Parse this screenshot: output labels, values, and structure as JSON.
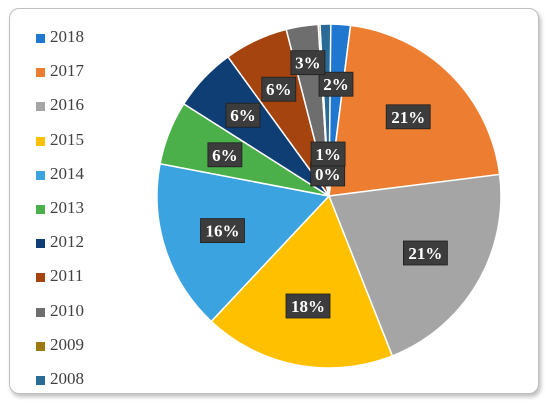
{
  "chart_data": {
    "type": "pie",
    "title": "",
    "legend_position": "left",
    "categories": [
      "2018",
      "2017",
      "2016",
      "2015",
      "2014",
      "2013",
      "2012",
      "2011",
      "2010",
      "2009",
      "2008"
    ],
    "values": [
      2,
      21,
      21,
      18,
      16,
      6,
      6,
      6,
      3,
      0,
      1
    ],
    "data_labels": [
      "2%",
      "21%",
      "21%",
      "18%",
      "16%",
      "6%",
      "6%",
      "6%",
      "3%",
      "0%",
      "1%"
    ],
    "colors": [
      "#1f77d0",
      "#ed7d31",
      "#a5a5a5",
      "#ffc000",
      "#3ba3e0",
      "#4cb04a",
      "#0e3e73",
      "#a5440f",
      "#6e6e6e",
      "#9c7a10",
      "#2a6a96"
    ]
  }
}
